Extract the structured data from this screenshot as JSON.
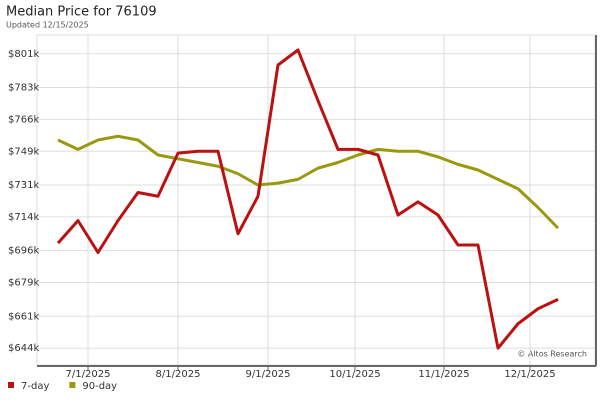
{
  "chart_data": {
    "type": "line",
    "title": "Median Price for 76109",
    "subtitle": "Updated 12/15/2025",
    "annotation": "© Altos Research",
    "categories": [
      null,
      null,
      null,
      null,
      null,
      null,
      null,
      null,
      null,
      null,
      null,
      null,
      null,
      null,
      null,
      null,
      null,
      null,
      null,
      null,
      null,
      null,
      null,
      null,
      null,
      null
    ],
    "xlim": [
      -1.05,
      26.85
    ],
    "xticks": [
      {
        "value": 1.5,
        "label": "7/1/2025"
      },
      {
        "value": 6,
        "label": "8/1/2025"
      },
      {
        "value": 10.5,
        "label": "9/1/2025"
      },
      {
        "value": 14.85,
        "label": "10/1/2025"
      },
      {
        "value": 19.3,
        "label": "11/1/2025"
      },
      {
        "value": 23.6,
        "label": "12/1/2025"
      }
    ],
    "ylim": [
      635,
      811
    ],
    "yticks": [
      {
        "value": 644,
        "label": "$644k"
      },
      {
        "value": 661,
        "label": "$661k"
      },
      {
        "value": 679,
        "label": "$679k"
      },
      {
        "value": 696,
        "label": "$696k"
      },
      {
        "value": 714,
        "label": "$714k"
      },
      {
        "value": 731,
        "label": "$731k"
      },
      {
        "value": 749,
        "label": "$749k"
      },
      {
        "value": 766,
        "label": "$766k"
      },
      {
        "value": 783,
        "label": "$783k"
      },
      {
        "value": 801,
        "label": "$801k"
      }
    ],
    "grid": true,
    "series": [
      {
        "name": "7-day",
        "color": "#bb1111",
        "values": [
          700,
          712,
          695,
          712,
          727,
          725,
          748,
          749,
          749,
          705,
          725,
          795,
          803,
          776,
          750,
          750,
          747,
          715,
          722,
          715,
          699,
          699,
          644,
          657,
          665,
          670
        ]
      },
      {
        "name": "90-day",
        "color": "#999911",
        "values": [
          755,
          750,
          755,
          757,
          755,
          747,
          745,
          743,
          741,
          737,
          731,
          732,
          734,
          740,
          743,
          747,
          750,
          749,
          749,
          746,
          742,
          739,
          734,
          729,
          719,
          708
        ]
      }
    ]
  }
}
